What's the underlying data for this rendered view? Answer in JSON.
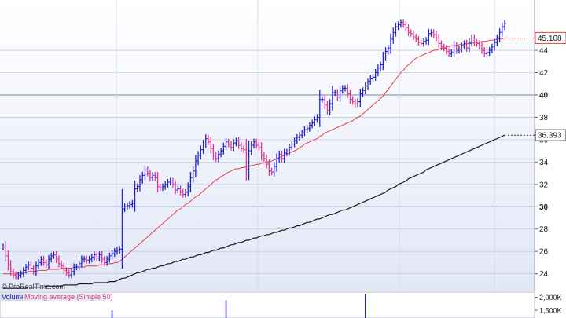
{
  "watermark": "© ProRealTime.com",
  "colors": {
    "up_bar": "#2222cc",
    "down_bar": "#e0368f",
    "ma50": "#e84040",
    "ma200": "#1a1a1a",
    "volume_bar": "#2222cc"
  },
  "volume_panel": {
    "label_volume": "Volume",
    "label_ma": "Moving average (Simple 50)",
    "ticks": [
      "2,000K",
      "1,500K"
    ]
  },
  "chart_data": {
    "type": "bar",
    "subtype": "ohlc-price-chart",
    "y_axis_ticks": [
      24,
      26,
      28,
      30,
      32,
      34,
      36,
      38,
      40,
      42,
      44
    ],
    "y_axis_bold_ticks": [
      30,
      40
    ],
    "ylim": [
      22,
      48
    ],
    "grid": true,
    "price_labels": [
      {
        "value": "45.108",
        "series": "ma50"
      },
      {
        "value": "36.393",
        "series": "ma200"
      }
    ],
    "price_series": {
      "name": "",
      "close": [
        26.4,
        25.6,
        24.8,
        24.2,
        23.9,
        23.8,
        23.9,
        24.0,
        24.3,
        24.6,
        24.8,
        24.5,
        24.2,
        24.7,
        25.0,
        25.3,
        25.0,
        24.8,
        25.3,
        25.6,
        25.7,
        25.3,
        24.9,
        24.7,
        24.3,
        24.1,
        23.9,
        24.2,
        24.6,
        24.6,
        24.9,
        25.3,
        25.3,
        25.2,
        25.3,
        25.5,
        25.7,
        25.4,
        25.7,
        25.3,
        25.0,
        25.3,
        25.6,
        25.8,
        26.0,
        26.1,
        26.2,
        29.8,
        30.0,
        30.1,
        30.2,
        30.3,
        31.6,
        31.8,
        32.4,
        32.8,
        33.3,
        33.0,
        32.6,
        32.8,
        32.6,
        31.8,
        31.7,
        31.8,
        32.0,
        32.2,
        32.3,
        32.0,
        31.5,
        31.6,
        31.3,
        31.1,
        31.3,
        31.8,
        32.6,
        33.2,
        34.1,
        34.6,
        35.1,
        35.6,
        36.1,
        35.8,
        35.2,
        34.6,
        34.3,
        34.7,
        35.0,
        35.4,
        35.8,
        35.6,
        35.3,
        35.7,
        35.9,
        35.5,
        35.2,
        35.1,
        33.3,
        35.0,
        35.5,
        35.8,
        35.5,
        35.3,
        34.6,
        34.3,
        33.8,
        33.2,
        33.1,
        33.6,
        34.3,
        34.7,
        34.3,
        34.8,
        34.9,
        35.3,
        35.6,
        35.9,
        36.2,
        36.4,
        36.6,
        36.9,
        37.0,
        37.3,
        37.5,
        37.8,
        38.0,
        39.6,
        39.6,
        39.1,
        38.6,
        39.2,
        40.2,
        40.2,
        39.8,
        40.4,
        40.6,
        40.6,
        40.1,
        39.6,
        39.4,
        39.2,
        39.4,
        40.1,
        40.4,
        40.8,
        41.2,
        41.5,
        41.6,
        42.0,
        42.4,
        42.7,
        43.4,
        43.9,
        44.2,
        45.0,
        45.6,
        46.1,
        46.3,
        46.5,
        46.3,
        46.0,
        45.6,
        45.5,
        45.2,
        45.0,
        44.7,
        44.6,
        44.8,
        44.9,
        45.5,
        45.6,
        45.4,
        45.1,
        44.6,
        44.3,
        44.2,
        43.9,
        43.7,
        43.8,
        44.4,
        44.0,
        44.1,
        44.4,
        44.6,
        44.2,
        44.7,
        45.1,
        44.7,
        44.6,
        44.4,
        44.0,
        43.7,
        43.8,
        44.0,
        44.3,
        44.7,
        45.1,
        45.6,
        46.1,
        46.4
      ],
      "ma50": [
        24.0,
        24.0,
        24.0,
        24.0,
        24.0,
        24.0,
        24.1,
        24.1,
        24.1,
        24.1,
        24.2,
        24.2,
        24.2,
        24.2,
        24.3,
        24.3,
        24.3,
        24.3,
        24.4,
        24.4,
        24.4,
        24.4,
        24.4,
        24.5,
        24.5,
        24.5,
        24.5,
        24.5,
        24.6,
        24.6,
        24.6,
        24.6,
        24.6,
        24.7,
        24.7,
        24.7,
        24.7,
        24.7,
        24.8,
        24.8,
        24.8,
        24.8,
        24.9,
        24.9,
        25.0,
        25.0,
        25.1,
        25.3,
        25.5,
        25.7,
        25.9,
        26.1,
        26.3,
        26.5,
        26.7,
        26.9,
        27.1,
        27.3,
        27.5,
        27.7,
        27.9,
        28.1,
        28.3,
        28.5,
        28.7,
        28.9,
        29.1,
        29.3,
        29.5,
        29.7,
        29.8,
        30.0,
        30.2,
        30.3,
        30.5,
        30.7,
        30.9,
        31.0,
        31.2,
        31.4,
        31.6,
        31.8,
        32.0,
        32.2,
        32.4,
        32.5,
        32.7,
        32.8,
        33.0,
        33.1,
        33.2,
        33.3,
        33.4,
        33.4,
        33.5,
        33.5,
        33.6,
        33.6,
        33.7,
        33.7,
        33.8,
        33.8,
        33.9,
        33.9,
        34.0,
        34.0,
        34.1,
        34.2,
        34.3,
        34.4,
        34.5,
        34.6,
        34.7,
        34.8,
        34.9,
        35.0,
        35.1,
        35.3,
        35.4,
        35.6,
        35.7,
        35.8,
        35.9,
        36.0,
        36.1,
        36.3,
        36.4,
        36.6,
        36.7,
        36.8,
        36.9,
        37.0,
        37.1,
        37.2,
        37.3,
        37.4,
        37.5,
        37.6,
        37.7,
        37.9,
        38.0,
        38.1,
        38.3,
        38.5,
        38.7,
        38.9,
        39.1,
        39.3,
        39.5,
        39.7,
        39.9,
        40.2,
        40.5,
        40.8,
        41.1,
        41.4,
        41.7,
        42.0,
        42.2,
        42.5,
        42.7,
        42.9,
        43.1,
        43.3,
        43.4,
        43.5,
        43.6,
        43.7,
        43.8,
        43.9,
        44.0,
        44.0,
        44.1,
        44.2,
        44.2,
        44.3,
        44.3,
        44.4,
        44.4,
        44.4,
        44.5,
        44.5,
        44.5,
        44.6,
        44.6,
        44.6,
        44.7,
        44.7,
        44.7,
        44.8,
        44.8,
        44.8,
        44.9,
        44.9,
        44.9,
        45.0,
        45.0,
        45.0,
        45.1,
        45.1
      ],
      "ma200": [
        22.7,
        22.7,
        22.7,
        22.7,
        22.7,
        22.7,
        22.7,
        22.7,
        22.7,
        22.7,
        22.8,
        22.8,
        22.8,
        22.8,
        22.8,
        22.8,
        22.8,
        22.9,
        22.9,
        22.9,
        22.9,
        22.9,
        22.9,
        22.9,
        23.0,
        23.0,
        23.0,
        23.0,
        23.0,
        23.0,
        23.1,
        23.1,
        23.1,
        23.1,
        23.1,
        23.1,
        23.2,
        23.2,
        23.2,
        23.2,
        23.2,
        23.2,
        23.3,
        23.3,
        23.3,
        23.4,
        23.5,
        23.6,
        23.6,
        23.7,
        23.8,
        23.9,
        24.0,
        24.1,
        24.1,
        24.2,
        24.3,
        24.4,
        24.4,
        24.5,
        24.5,
        24.6,
        24.7,
        24.7,
        24.8,
        24.9,
        24.9,
        25.0,
        25.1,
        25.1,
        25.2,
        25.3,
        25.3,
        25.4,
        25.5,
        25.5,
        25.6,
        25.7,
        25.7,
        25.8,
        25.9,
        25.9,
        26.0,
        26.1,
        26.1,
        26.2,
        26.3,
        26.3,
        26.4,
        26.5,
        26.6,
        26.6,
        26.7,
        26.8,
        26.8,
        26.9,
        27.0,
        27.0,
        27.1,
        27.2,
        27.2,
        27.3,
        27.4,
        27.4,
        27.5,
        27.5,
        27.6,
        27.7,
        27.7,
        27.8,
        27.9,
        27.9,
        28.0,
        28.1,
        28.1,
        28.2,
        28.3,
        28.3,
        28.4,
        28.5,
        28.6,
        28.6,
        28.7,
        28.8,
        28.9,
        28.9,
        29.0,
        29.1,
        29.2,
        29.3,
        29.3,
        29.4,
        29.5,
        29.6,
        29.7,
        29.7,
        29.8,
        29.9,
        30.0,
        30.1,
        30.2,
        30.3,
        30.4,
        30.5,
        30.6,
        30.7,
        30.8,
        30.9,
        31.0,
        31.1,
        31.2,
        31.3,
        31.5,
        31.6,
        31.7,
        31.8,
        32.0,
        32.1,
        32.2,
        32.3,
        32.5,
        32.6,
        32.7,
        32.8,
        32.9,
        33.0,
        33.1,
        33.3,
        33.4,
        33.5,
        33.6,
        33.7,
        33.8,
        33.9,
        34.0,
        34.1,
        34.2,
        34.3,
        34.4,
        34.5,
        34.6,
        34.7,
        34.8,
        34.9,
        35.0,
        35.1,
        35.2,
        35.3,
        35.4,
        35.5,
        35.6,
        35.7,
        35.8,
        35.9,
        36.0,
        36.1,
        36.2,
        36.3,
        36.4
      ]
    },
    "volume": {
      "ylim": [
        1200,
        2200
      ],
      "spikes": [
        {
          "index": 43,
          "value": 1500
        },
        {
          "index": 88,
          "value": 1880
        },
        {
          "index": 143,
          "value": 2120
        }
      ]
    }
  }
}
